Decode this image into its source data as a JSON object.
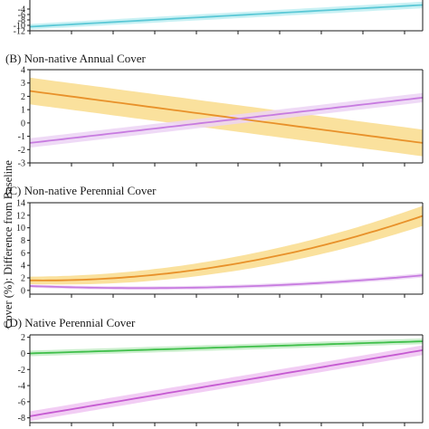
{
  "figure": {
    "y_axis_label": "Cover (%): Difference from Baseline"
  },
  "chart_data": [
    {
      "type": "line",
      "title": "",
      "ylim": [
        -12,
        0
      ],
      "yticks": [
        -12,
        -10,
        -8,
        -6,
        -4
      ],
      "x": [
        0,
        1
      ],
      "series": [
        {
          "color": "#5bc8d6",
          "band_color": "#bfeef2",
          "values": [
            -10.5,
            -2.5
          ],
          "band": [
            1.0,
            1.2
          ]
        }
      ]
    },
    {
      "type": "line",
      "title": "(B) Non-native Annual Cover",
      "ylim": [
        -3,
        4
      ],
      "yticks": [
        -3,
        -2,
        -1,
        0,
        1,
        2,
        3,
        4
      ],
      "x": [
        0,
        1
      ],
      "series": [
        {
          "color": "#e8912a",
          "band_color": "#f9dc8c",
          "values": [
            2.4,
            -1.5
          ],
          "band": [
            1.0,
            1.0
          ]
        },
        {
          "color": "#c77be0",
          "band_color": "#ecd3f5",
          "values": [
            -1.5,
            1.9
          ],
          "band": [
            0.35,
            0.35
          ]
        }
      ]
    },
    {
      "type": "line",
      "title": "(C) Non-native Perennial Cover",
      "ylim": [
        -0.6,
        14
      ],
      "yticks": [
        0,
        2,
        4,
        6,
        8,
        10,
        12,
        14
      ],
      "x": [
        0,
        1
      ],
      "series": [
        {
          "color": "#e8912a",
          "band_color": "#f9dc8c",
          "curve": "quadratic",
          "values": [
            1.6,
            11.9
          ],
          "mid": 4.0,
          "band": [
            0.6,
            1.6
          ]
        },
        {
          "color": "#c77be0",
          "band_color": "#ecd3f5",
          "curve": "quadratic",
          "values": [
            0.7,
            2.4
          ],
          "mid": 0.55,
          "band": [
            0.25,
            0.35
          ]
        }
      ]
    },
    {
      "type": "line",
      "title": "(D) Native Perennial Cover",
      "ylim": [
        -8.6,
        2.3
      ],
      "yticks": [
        -8,
        -6,
        -4,
        -2,
        0,
        2
      ],
      "x": [
        0,
        1
      ],
      "series": [
        {
          "color": "#3fbf4a",
          "band_color": "#c3ecc6",
          "values": [
            0.0,
            1.5
          ],
          "band": [
            0.35,
            0.35
          ]
        },
        {
          "color": "#c55ad1",
          "band_color": "#f0c4f2",
          "values": [
            -7.8,
            0.4
          ],
          "band": [
            0.6,
            0.6
          ]
        }
      ]
    }
  ]
}
